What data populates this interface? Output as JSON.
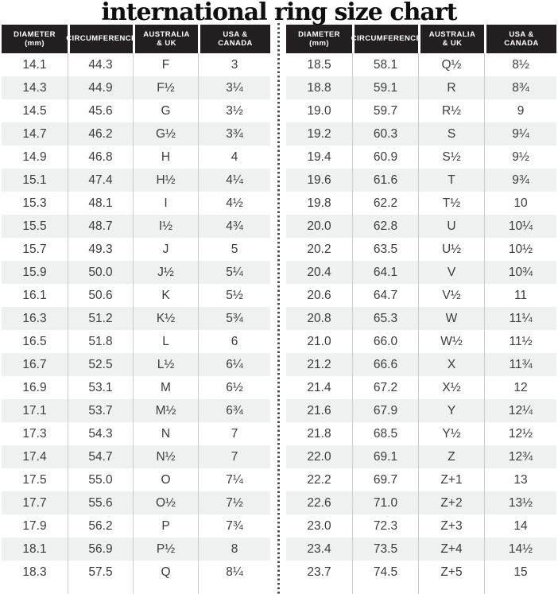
{
  "chart_data": {
    "type": "table",
    "title": "international ring size chart",
    "columns": [
      "DIAMETER\n(mm)",
      "CIRCUMFERENCE",
      "AUSTRALIA\n& UK",
      "USA &\nCANADA"
    ],
    "tables": [
      {
        "name": "left",
        "rows": [
          [
            "14.1",
            "44.3",
            "F",
            "3"
          ],
          [
            "14.3",
            "44.9",
            "F½",
            "3¼"
          ],
          [
            "14.5",
            "45.6",
            "G",
            "3½"
          ],
          [
            "14.7",
            "46.2",
            "G½",
            "3¾"
          ],
          [
            "14.9",
            "46.8",
            "H",
            "4"
          ],
          [
            "15.1",
            "47.4",
            "H½",
            "4¼"
          ],
          [
            "15.3",
            "48.1",
            "I",
            "4½"
          ],
          [
            "15.5",
            "48.7",
            "I½",
            "4¾"
          ],
          [
            "15.7",
            "49.3",
            "J",
            "5"
          ],
          [
            "15.9",
            "50.0",
            "J½",
            "5¼"
          ],
          [
            "16.1",
            "50.6",
            "K",
            "5½"
          ],
          [
            "16.3",
            "51.2",
            "K½",
            "5¾"
          ],
          [
            "16.5",
            "51.8",
            "L",
            "6"
          ],
          [
            "16.7",
            "52.5",
            "L½",
            "6¼"
          ],
          [
            "16.9",
            "53.1",
            "M",
            "6½"
          ],
          [
            "17.1",
            "53.7",
            "M½",
            "6¾"
          ],
          [
            "17.3",
            "54.3",
            "N",
            "7"
          ],
          [
            "17.4",
            "54.7",
            "N½",
            "7"
          ],
          [
            "17.5",
            "55.0",
            "O",
            "7¼"
          ],
          [
            "17.7",
            "55.6",
            "O½",
            "7½"
          ],
          [
            "17.9",
            "56.2",
            "P",
            "7¾"
          ],
          [
            "18.1",
            "56.9",
            "P½",
            "8"
          ],
          [
            "18.3",
            "57.5",
            "Q",
            "8¼"
          ]
        ]
      },
      {
        "name": "right",
        "rows": [
          [
            "18.5",
            "58.1",
            "Q½",
            "8½"
          ],
          [
            "18.8",
            "59.1",
            "R",
            "8¾"
          ],
          [
            "19.0",
            "59.7",
            "R½",
            "9"
          ],
          [
            "19.2",
            "60.3",
            "S",
            "9¼"
          ],
          [
            "19.4",
            "60.9",
            "S½",
            "9½"
          ],
          [
            "19.6",
            "61.6",
            "T",
            "9¾"
          ],
          [
            "19.8",
            "62.2",
            "T½",
            "10"
          ],
          [
            "20.0",
            "62.8",
            "U",
            "10¼"
          ],
          [
            "20.2",
            "63.5",
            "U½",
            "10½"
          ],
          [
            "20.4",
            "64.1",
            "V",
            "10¾"
          ],
          [
            "20.6",
            "64.7",
            "V½",
            "11"
          ],
          [
            "20.8",
            "65.3",
            "W",
            "11¼"
          ],
          [
            "21.0",
            "66.0",
            "W½",
            "11½"
          ],
          [
            "21.2",
            "66.6",
            "X",
            "11¾"
          ],
          [
            "21.4",
            "67.2",
            "X½",
            "12"
          ],
          [
            "21.6",
            "67.9",
            "Y",
            "12¼"
          ],
          [
            "21.8",
            "68.5",
            "Y½",
            "12½"
          ],
          [
            "22.0",
            "69.1",
            "Z",
            "12¾"
          ],
          [
            "22.2",
            "69.7",
            "Z+1",
            "13"
          ],
          [
            "22.6",
            "71.0",
            "Z+2",
            "13½"
          ],
          [
            "23.0",
            "72.3",
            "Z+3",
            "14"
          ],
          [
            "23.4",
            "73.5",
            "Z+4",
            "14½"
          ],
          [
            "23.7",
            "74.5",
            "Z+5",
            "15"
          ]
        ]
      }
    ],
    "layout": {
      "legend": "none",
      "grid": "alternating-row-stripes",
      "divider": "vertical-dotted-line"
    }
  },
  "colors": {
    "header_bg": "#231f20",
    "header_text": "#ffffff",
    "body_text": "#3c3c3c",
    "row_stripe": "#eff1f1",
    "column_line": "#c9cbcb",
    "divider_dot": "#4d4d4d"
  }
}
